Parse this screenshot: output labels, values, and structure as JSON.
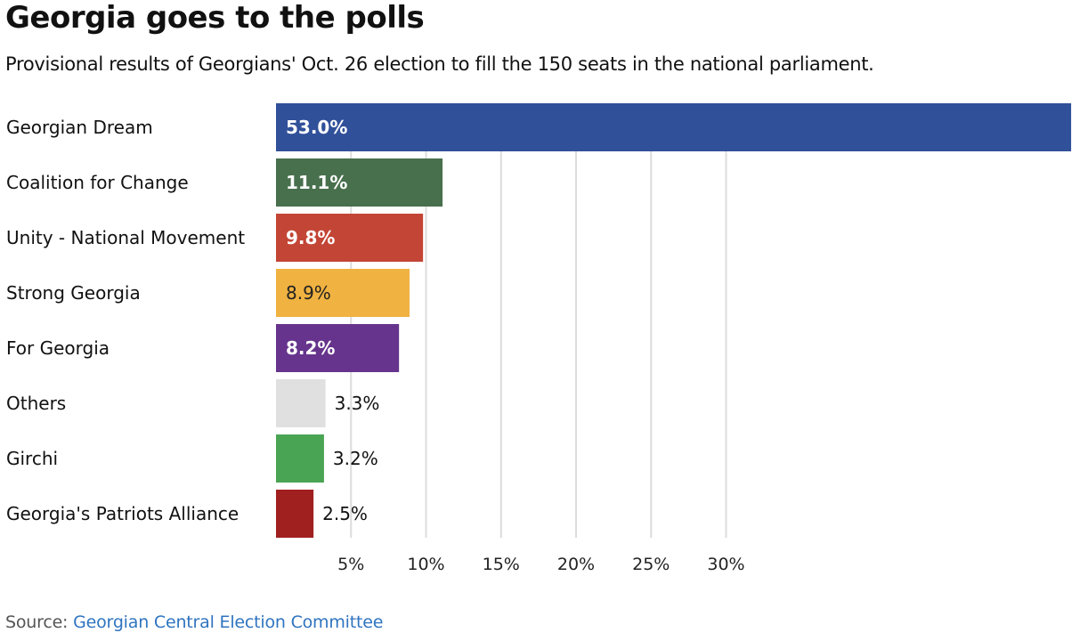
{
  "header": {
    "title": "Georgia goes to the polls",
    "subtitle": "Provisional results of Georgians' Oct. 26 election to fill the 150 seats in the national parliament."
  },
  "footer": {
    "source_label": "Source:",
    "source_link": "Georgian Central Election Committee"
  },
  "chart_data": {
    "type": "bar",
    "orientation": "horizontal",
    "title": "Georgia goes to the polls",
    "subtitle": "Provisional results of Georgians' Oct. 26 election to fill the 150 seats in the national parliament.",
    "xlabel": "",
    "ylabel": "",
    "xlim": [
      0,
      53
    ],
    "grid": true,
    "categories": [
      "Georgian Dream",
      "Coalition for Change",
      "Unity - National Movement",
      "Strong Georgia",
      "For Georgia",
      "Others",
      "Girchi",
      "Georgia's Patriots Alliance"
    ],
    "values": [
      53.0,
      11.1,
      9.8,
      8.9,
      8.2,
      3.3,
      3.2,
      2.5
    ],
    "value_labels": [
      "53.0%",
      "11.1%",
      "9.8%",
      "8.9%",
      "8.2%",
      "3.3%",
      "3.2%",
      "2.5%"
    ],
    "colors": [
      "#31509a",
      "#48704d",
      "#c34535",
      "#f0b240",
      "#66348c",
      "#e0e0e0",
      "#49a454",
      "#a01f1f"
    ],
    "x_ticks": [
      5,
      10,
      15,
      20,
      25,
      30
    ],
    "x_tick_labels": [
      "5%",
      "10%",
      "15%",
      "20%",
      "25%",
      "30%"
    ]
  }
}
